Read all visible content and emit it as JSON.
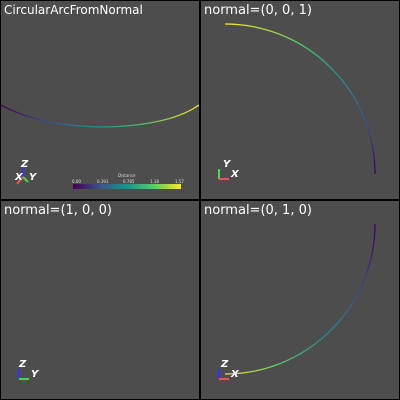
{
  "viewports": [
    {
      "title": "CircularArcFromNormal",
      "axes": {
        "vertical": "Z",
        "horizontal": "Y",
        "depth": "X"
      },
      "scalar_bar": {
        "title": "Distance",
        "ticks": [
          "0.00",
          "0.393",
          "0.785",
          "1.18",
          "1.57"
        ],
        "colormap": [
          "#440154",
          "#3b528b",
          "#21918c",
          "#5ec962",
          "#fde725"
        ]
      }
    },
    {
      "title": "normal=(0, 0, 1)",
      "axes": {
        "vertical": "Y",
        "horizontal": "X"
      }
    },
    {
      "title": "normal=(1, 0, 0)",
      "axes": {
        "vertical": "Z",
        "horizontal": "Y"
      }
    },
    {
      "title": "normal=(0, 1, 0)",
      "axes": {
        "vertical": "Z",
        "horizontal": "X"
      }
    }
  ],
  "colors": {
    "background": "#4d4d4d",
    "separator": "#000000",
    "axis_x": "#ff4d4d",
    "axis_y": "#4dd94d",
    "axis_z": "#3333ff"
  }
}
